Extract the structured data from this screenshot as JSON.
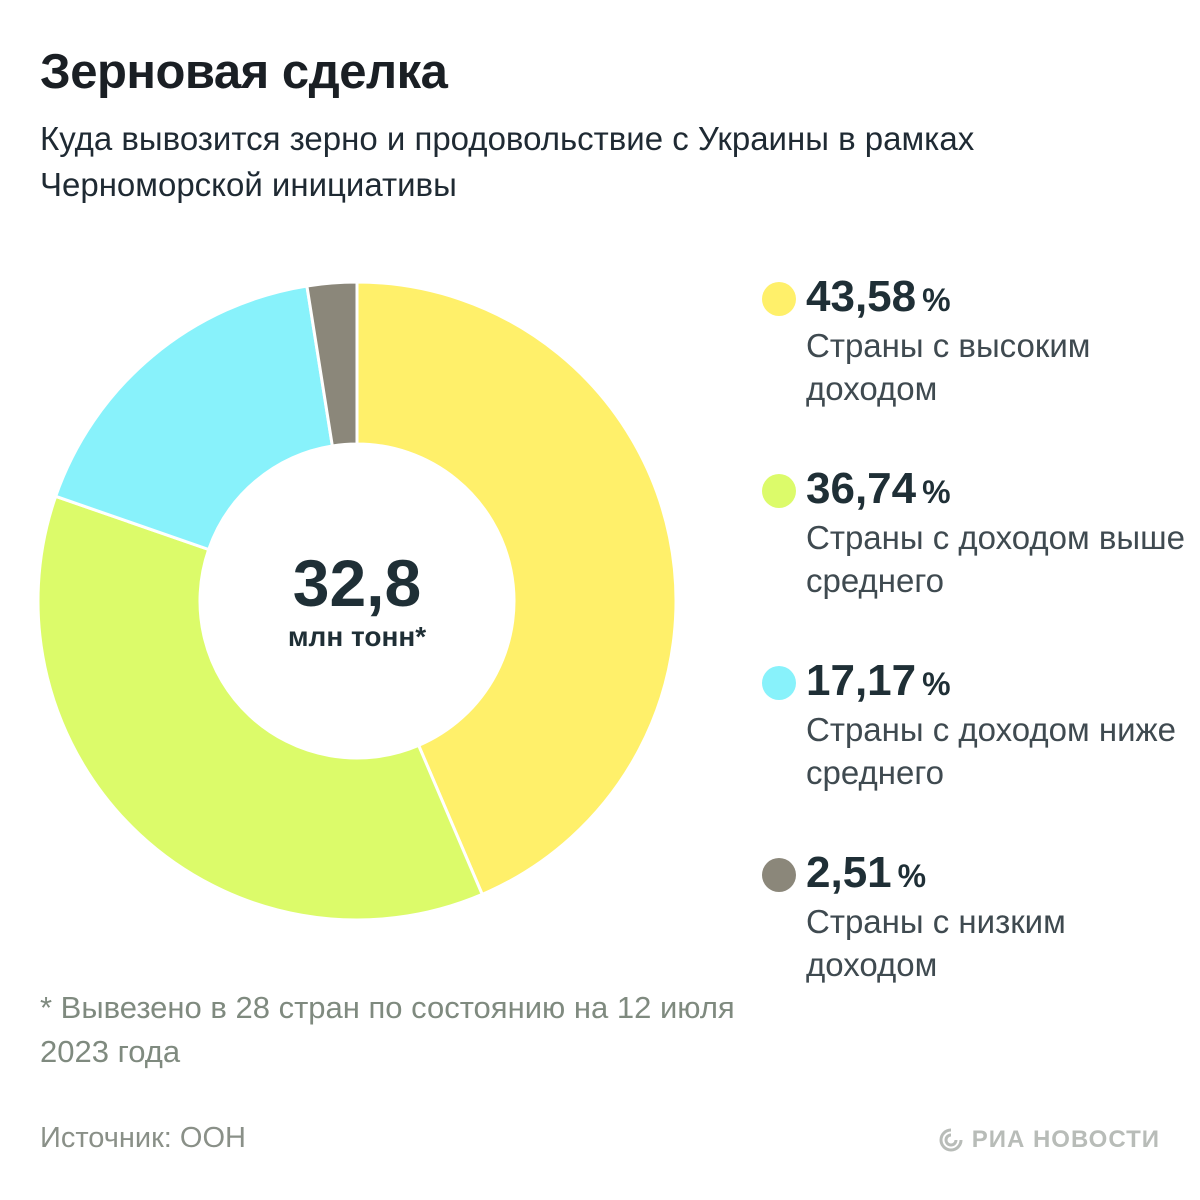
{
  "header": {
    "title": "Зерновая сделка",
    "subtitle": "Куда вывозится зерно и продовольствие с Украины в рамках Черноморской инициативы"
  },
  "center": {
    "value": "32,8",
    "unit": "млн тонн*"
  },
  "legend": [
    {
      "value": "43,58",
      "percent_sign": "%",
      "label": "Страны с высоким доходом",
      "color": "#fff06a"
    },
    {
      "value": "36,74",
      "percent_sign": "%",
      "label": "Страны с доходом выше среднего",
      "color": "#dcfb6a"
    },
    {
      "value": "17,17",
      "percent_sign": "%",
      "label": "Страны с доходом ниже среднего",
      "color": "#88f2fb"
    },
    {
      "value": "2,51",
      "percent_sign": "%",
      "label": "Страны с низким доходом",
      "color": "#8b877a"
    }
  ],
  "footnote": "* Вывезено в 28 стран по состоянию на 12 июля 2023 года",
  "source": "Источник: ООН",
  "logo": {
    "text": "РИА НОВОСТИ",
    "icon": "ria-novosti-logo-icon"
  },
  "chart_data": {
    "type": "pie",
    "categories": [
      "Страны с высоким доходом",
      "Страны с доходом выше среднего",
      "Страны с доходом ниже среднего",
      "Страны с низким доходом"
    ],
    "values": [
      43.58,
      36.74,
      17.17,
      2.51
    ],
    "colors": [
      "#fff06a",
      "#dcfb6a",
      "#88f2fb",
      "#8b877a"
    ],
    "total": "32,8",
    "total_unit": "млн тонн*",
    "title": "Зерновая сделка",
    "legend_placement": "right"
  }
}
